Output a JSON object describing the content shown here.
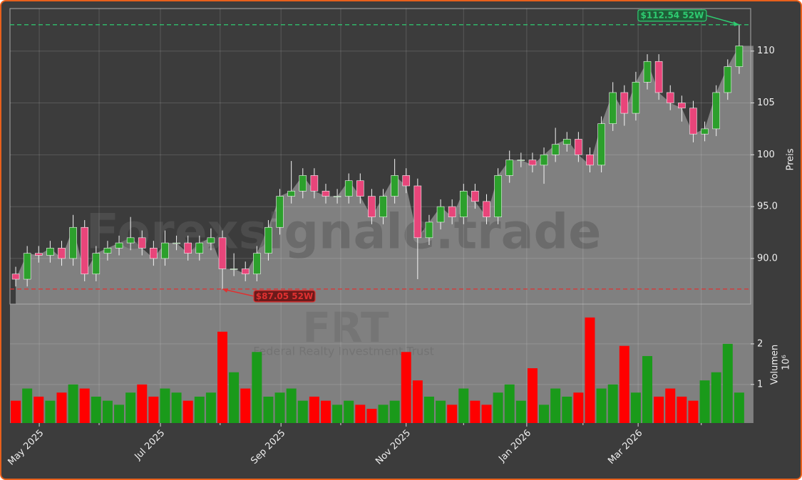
{
  "chart_data": [
    {
      "type": "candlestick",
      "y_label": "Preis",
      "open": [
        88.5,
        88.0,
        90.5,
        90.3,
        91.0,
        90.0,
        93.0,
        88.5,
        90.5,
        91.0,
        91.5,
        92.0,
        91.0,
        90.0,
        91.5,
        91.5,
        90.5,
        91.5,
        92.0,
        89.0,
        89.0,
        88.5,
        90.5,
        93.0,
        96.0,
        96.5,
        98.0,
        96.5,
        96.0,
        96.0,
        97.5,
        96.0,
        94.0,
        96.0,
        98.0,
        97.0,
        92.0,
        93.5,
        95.0,
        94.0,
        96.5,
        95.5,
        94.0,
        98.0,
        99.5,
        99.5,
        99.0,
        100.0,
        101.0,
        101.5,
        100.0,
        99.0,
        103.0,
        106.0,
        104.0,
        107.0,
        109.0,
        106.0,
        105.0,
        104.5,
        102.0,
        102.5,
        106.0,
        108.5
      ],
      "high": [
        89.2,
        91.2,
        91.2,
        91.7,
        91.7,
        94.2,
        93.7,
        91.2,
        91.7,
        92.2,
        94.0,
        92.7,
        91.7,
        92.7,
        92.2,
        92.2,
        92.2,
        92.9,
        92.7,
        90.5,
        89.7,
        91.2,
        93.7,
        96.7,
        99.4,
        98.7,
        98.7,
        97.2,
        96.7,
        98.2,
        98.2,
        96.7,
        96.7,
        99.6,
        98.7,
        97.7,
        94.2,
        95.7,
        95.7,
        97.2,
        97.2,
        96.2,
        98.7,
        100.4,
        100.2,
        100.2,
        100.7,
        102.6,
        102.2,
        102.2,
        100.7,
        103.7,
        107.0,
        106.7,
        108.0,
        109.7,
        109.7,
        106.7,
        105.7,
        105.2,
        103.2,
        106.7,
        109.2,
        112.54
      ],
      "low": [
        87.3,
        87.3,
        89.6,
        89.6,
        89.3,
        89.3,
        87.8,
        87.8,
        89.8,
        90.3,
        90.8,
        90.3,
        89.3,
        89.3,
        90.8,
        89.8,
        89.8,
        90.8,
        87.05,
        88.3,
        87.8,
        87.8,
        89.8,
        92.3,
        95.3,
        95.8,
        95.8,
        95.3,
        95.3,
        95.3,
        95.3,
        93.3,
        93.3,
        95.3,
        96.3,
        88.0,
        91.3,
        92.8,
        93.3,
        93.3,
        94.8,
        93.3,
        93.3,
        97.3,
        98.8,
        98.3,
        97.2,
        99.3,
        100.3,
        99.3,
        98.3,
        98.3,
        102.3,
        102.8,
        103.3,
        106.3,
        105.3,
        104.3,
        103.2,
        101.2,
        101.3,
        101.8,
        105.3,
        107.8
      ],
      "close": [
        88.0,
        90.5,
        90.3,
        91.0,
        90.0,
        93.0,
        88.5,
        90.5,
        91.0,
        91.5,
        92.0,
        91.0,
        90.0,
        91.5,
        91.5,
        90.5,
        91.5,
        92.0,
        89.0,
        89.0,
        88.5,
        90.5,
        93.0,
        96.0,
        96.5,
        98.0,
        96.5,
        96.0,
        96.0,
        97.5,
        96.0,
        94.0,
        96.0,
        98.0,
        97.0,
        92.0,
        93.5,
        95.0,
        94.0,
        96.5,
        95.5,
        94.0,
        98.0,
        99.5,
        99.5,
        99.0,
        100.0,
        101.0,
        101.5,
        100.0,
        99.0,
        103.0,
        106.0,
        104.0,
        107.0,
        109.0,
        106.0,
        105.0,
        104.5,
        102.0,
        102.5,
        106.0,
        108.5,
        110.5
      ],
      "up_color": "#2ca02c",
      "down_color": "#e8457a",
      "area_color": "#808080",
      "ylim": [
        85.6,
        114.1
      ],
      "yticks": [
        {
          "value": 90,
          "label": "90.0"
        },
        {
          "value": 95,
          "label": "95.0"
        },
        100,
        105,
        110
      ],
      "xlim": [
        -0.5,
        64.0
      ],
      "xticks": [
        {
          "value": 2.05,
          "label": "May 2025"
        },
        {
          "value": 12.6,
          "label": "Jul 2025"
        },
        {
          "value": 23.1,
          "label": "Sep 2025"
        },
        {
          "value": 34.0,
          "label": "Nov 2025"
        },
        {
          "value": 44.5,
          "label": "Jan 2026"
        },
        {
          "value": 54.2,
          "label": "Mar 2026"
        }
      ],
      "xticks_minor": [
        7.26,
        17.8,
        28.3,
        39.0,
        49.4,
        59.7
      ],
      "grid": true,
      "annotations": [
        {
          "text": "$112.54 52W",
          "value": 112.54,
          "index": 63,
          "color": "#2ecc71"
        },
        {
          "text": "$87.05 52W",
          "value": 87.05,
          "index": 18,
          "color": "#e03030"
        }
      ],
      "watermark": "Forexsignale.trade",
      "symbol": "FRT",
      "company": "Federal Realty Investment Trust"
    },
    {
      "type": "bar",
      "y_label": "Volumen",
      "scale_label": "10⁶",
      "values": [
        0.6,
        0.9,
        0.7,
        0.6,
        0.8,
        1.0,
        0.9,
        0.7,
        0.6,
        0.5,
        0.8,
        1.0,
        0.7,
        0.9,
        0.8,
        0.6,
        0.7,
        0.8,
        2.3,
        1.3,
        0.9,
        1.8,
        0.7,
        0.8,
        0.9,
        0.6,
        0.7,
        0.6,
        0.5,
        0.6,
        0.5,
        0.4,
        0.5,
        0.6,
        1.8,
        1.1,
        0.7,
        0.6,
        0.5,
        0.9,
        0.6,
        0.5,
        0.8,
        1.0,
        0.6,
        1.4,
        0.5,
        0.9,
        0.7,
        0.8,
        2.65,
        0.9,
        1.0,
        1.95,
        0.8,
        1.7,
        0.7,
        0.9,
        0.7,
        0.6,
        1.1,
        1.3,
        2.0,
        0.8
      ],
      "up_color": "#1a9a1a",
      "down_color": "#ff0000",
      "ylim": [
        0.05,
        2.98
      ],
      "yticks": [
        1,
        2
      ]
    }
  ]
}
